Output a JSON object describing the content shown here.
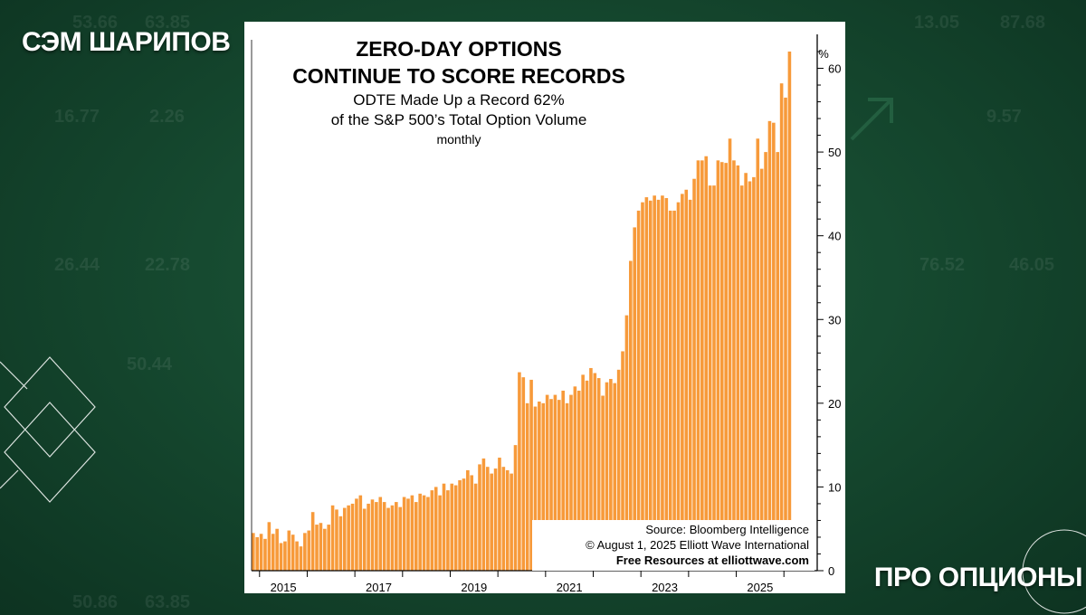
{
  "branding": {
    "top_left": "СЭМ ШАРИПОВ",
    "bottom_right": "ПРО ОПЦИОНЫ"
  },
  "background_ticker": [
    "53.66",
    "63.85",
    "16.77",
    "2.26",
    "26.44",
    "22.78",
    "50.44",
    "13.05",
    "9.57",
    "76.52",
    "87.68",
    "46.05",
    "50.86",
    "63.85"
  ],
  "colors": {
    "bar": "#f79a3a",
    "background": "#164a30",
    "card": "#ffffff",
    "text": "#000000"
  },
  "chart_data": {
    "type": "bar",
    "title_line1": "ZERO-DAY OPTIONS",
    "title_line2": "CONTINUE TO SCORE RECORDS",
    "subtitle_line1": "ODTE Made Up a Record 62%",
    "subtitle_line2": "of the S&P 500’s Total Option Volume",
    "frequency": "monthly",
    "ylabel": "%",
    "ylim": [
      0,
      62
    ],
    "yticks": [
      0,
      10,
      20,
      30,
      40,
      50,
      60
    ],
    "xticks": [
      "2015",
      "2017",
      "2019",
      "2021",
      "2023",
      "2025"
    ],
    "x_start": "2014-11",
    "x_end": "2025-07",
    "source_line1": "Source: Bloomberg Intelligence",
    "source_line2": "© August 1, 2025  Elliott Wave International",
    "source_line3": "Free Resources at elliottwave.com",
    "values": [
      4.5,
      4.0,
      4.4,
      3.8,
      5.8,
      4.4,
      5.0,
      3.3,
      3.5,
      4.8,
      4.3,
      3.5,
      2.9,
      4.5,
      4.8,
      7.0,
      5.5,
      5.7,
      5.0,
      5.5,
      7.8,
      7.3,
      6.5,
      7.5,
      7.8,
      8.0,
      8.6,
      9.0,
      7.4,
      8.0,
      8.5,
      8.2,
      8.8,
      8.2,
      7.5,
      7.8,
      8.2,
      7.6,
      8.8,
      8.6,
      9.0,
      8.2,
      9.2,
      9.0,
      8.8,
      9.6,
      10.0,
      9.0,
      10.4,
      9.6,
      10.4,
      10.2,
      10.8,
      11.0,
      12.0,
      11.4,
      10.4,
      12.7,
      13.4,
      12.4,
      11.6,
      12.2,
      13.5,
      12.4,
      12.0,
      11.6,
      15.0,
      23.7,
      23.1,
      20.0,
      22.8,
      19.6,
      20.2,
      20.0,
      21.0,
      20.5,
      21.0,
      20.4,
      21.5,
      20.0,
      21.0,
      22.0,
      21.5,
      23.4,
      22.7,
      24.2,
      23.6,
      23.0,
      20.9,
      22.5,
      22.9,
      22.4,
      24.0,
      26.2,
      30.5,
      37.0,
      41.0,
      43.0,
      44.0,
      44.6,
      44.2,
      44.8,
      44.3,
      44.8,
      44.5,
      43.0,
      43.0,
      44.0,
      45.0,
      45.5,
      44.3,
      46.8,
      49.0,
      49.0,
      49.5,
      46.0,
      46.0,
      49.0,
      48.8,
      48.7,
      51.6,
      49.0,
      48.4,
      46.0,
      47.5,
      46.5,
      47.0,
      51.6,
      48.0,
      50.0,
      53.7,
      53.5,
      50.0,
      58.2,
      56.5,
      62.0
    ]
  }
}
